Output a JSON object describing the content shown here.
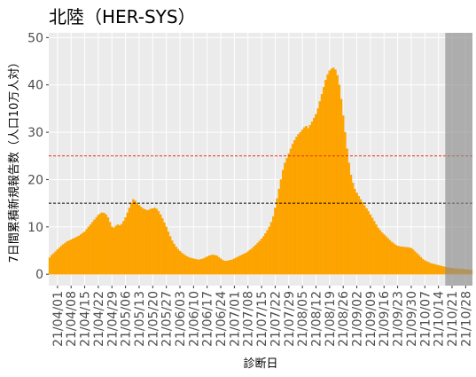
{
  "chart_data": {
    "type": "bar",
    "title": "北陸（HER-SYS）",
    "x_label": "診断日",
    "y_label": "7日間累積新規報告数（人口10万人対）",
    "categories": [
      null,
      null,
      null,
      null,
      "21/04/01",
      null,
      null,
      null,
      null,
      null,
      null,
      "21/04/08",
      null,
      null,
      null,
      null,
      null,
      null,
      "21/04/15",
      null,
      null,
      null,
      null,
      null,
      null,
      "21/04/22",
      null,
      null,
      null,
      null,
      null,
      null,
      "21/04/29",
      null,
      null,
      null,
      null,
      null,
      null,
      "21/05/06",
      null,
      null,
      null,
      null,
      null,
      null,
      "21/05/13",
      null,
      null,
      null,
      null,
      null,
      null,
      "21/05/20",
      null,
      null,
      null,
      null,
      null,
      null,
      "21/05/27",
      null,
      null,
      null,
      null,
      null,
      null,
      "21/06/03",
      null,
      null,
      null,
      null,
      null,
      null,
      "21/06/10",
      null,
      null,
      null,
      null,
      null,
      null,
      "21/06/17",
      null,
      null,
      null,
      null,
      null,
      null,
      "21/06/24",
      null,
      null,
      null,
      null,
      null,
      null,
      "21/07/01",
      null,
      null,
      null,
      null,
      null,
      null,
      "21/07/08",
      null,
      null,
      null,
      null,
      null,
      null,
      "21/07/15",
      null,
      null,
      null,
      null,
      null,
      null,
      "21/07/22",
      null,
      null,
      null,
      null,
      null,
      null,
      "21/07/29",
      null,
      null,
      null,
      null,
      null,
      null,
      "21/08/05",
      null,
      null,
      null,
      null,
      null,
      null,
      "21/08/12",
      null,
      null,
      null,
      null,
      null,
      null,
      "21/08/19",
      null,
      null,
      null,
      null,
      null,
      null,
      "21/08/26",
      null,
      null,
      null,
      null,
      null,
      null,
      "21/09/02",
      null,
      null,
      null,
      null,
      null,
      null,
      "21/09/09",
      null,
      null,
      null,
      null,
      null,
      null,
      "21/09/16",
      null,
      null,
      null,
      null,
      null,
      null,
      "21/09/23",
      null,
      null,
      null,
      null,
      null,
      null,
      "21/09/30",
      null,
      null,
      null,
      null,
      null,
      null,
      "21/10/07",
      null,
      null,
      null,
      null,
      null,
      null,
      "21/10/14",
      null,
      null,
      null,
      null,
      null,
      null,
      "21/10/21",
      null,
      null,
      null,
      null,
      null,
      null,
      "21/10/28",
      null,
      null,
      null
    ],
    "values": [
      3.5,
      4.0,
      4.4,
      4.8,
      5.2,
      5.6,
      6.0,
      6.3,
      6.6,
      6.9,
      7.1,
      7.3,
      7.5,
      7.7,
      7.9,
      8.1,
      8.4,
      8.7,
      9.0,
      9.5,
      10.0,
      10.5,
      11.0,
      11.5,
      12.0,
      12.5,
      12.8,
      13.0,
      12.9,
      12.6,
      12.0,
      11.0,
      10.0,
      9.8,
      10.2,
      10.5,
      10.3,
      10.6,
      11.2,
      12.0,
      13.0,
      14.0,
      15.0,
      15.8,
      15.5,
      15.0,
      14.6,
      14.2,
      13.9,
      13.7,
      13.5,
      13.6,
      13.8,
      13.9,
      14.0,
      13.8,
      13.3,
      12.6,
      11.8,
      10.9,
      10.0,
      9.0,
      8.0,
      7.1,
      6.4,
      5.8,
      5.3,
      4.9,
      4.5,
      4.2,
      3.9,
      3.7,
      3.5,
      3.4,
      3.3,
      3.2,
      3.1,
      3.1,
      3.2,
      3.3,
      3.5,
      3.7,
      3.9,
      4.0,
      4.1,
      4.0,
      3.9,
      3.6,
      3.3,
      3.0,
      2.8,
      2.8,
      2.9,
      3.0,
      3.1,
      3.3,
      3.5,
      3.7,
      3.9,
      4.1,
      4.3,
      4.5,
      4.8,
      5.1,
      5.4,
      5.8,
      6.2,
      6.6,
      7.0,
      7.5,
      8.0,
      8.6,
      9.3,
      10.0,
      11.0,
      12.2,
      14.0,
      16.0,
      18.0,
      20.0,
      22.0,
      23.5,
      24.5,
      25.5,
      26.5,
      27.5,
      28.3,
      29.0,
      29.6,
      30.0,
      30.5,
      31.0,
      31.3,
      30.8,
      31.5,
      32.2,
      33.0,
      33.8,
      35.0,
      36.5,
      38.0,
      39.5,
      41.0,
      42.2,
      43.0,
      43.4,
      43.6,
      43.2,
      42.0,
      40.0,
      37.0,
      33.5,
      30.0,
      26.5,
      23.5,
      21.0,
      19.3,
      18.0,
      17.2,
      16.5,
      15.8,
      15.2,
      14.5,
      13.9,
      13.3,
      12.6,
      11.9,
      11.2,
      10.5,
      9.8,
      9.3,
      8.8,
      8.4,
      8.0,
      7.6,
      7.2,
      6.8,
      6.5,
      6.2,
      6.0,
      5.9,
      5.8,
      5.8,
      5.7,
      5.7,
      5.6,
      5.5,
      5.2,
      4.8,
      4.4,
      4.0,
      3.6,
      3.2,
      2.9,
      2.7,
      2.5,
      2.3,
      2.2,
      2.1,
      2.0,
      1.9,
      1.8,
      1.7,
      1.6,
      1.5,
      1.4,
      1.3,
      1.3,
      1.2,
      1.2,
      1.2,
      1.1,
      1.1,
      1.1,
      1.0,
      1.0,
      0.9,
      0.9
    ],
    "color": "#ffa500",
    "ylim": [
      -2.4,
      51
    ],
    "yticks": [
      0,
      10,
      20,
      30,
      40,
      50
    ],
    "grid": true,
    "reference_lines": [
      {
        "value": 25,
        "color": "#e8341c"
      },
      {
        "value": 15,
        "color": "#000000"
      }
    ],
    "shaded_region": {
      "start": 204,
      "color": "#8c8c8c"
    }
  }
}
